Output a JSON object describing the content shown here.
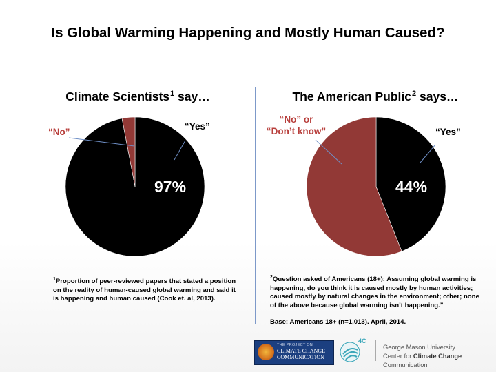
{
  "title": "Is Global Warming Happening and Mostly Human Caused?",
  "colors": {
    "yes": "#000000",
    "no": "#923936",
    "no_label": "#b83f3c",
    "divider": "#7d99c9"
  },
  "chart_data": [
    {
      "type": "pie",
      "title": "Climate Scientists",
      "title_sup": "1",
      "title_suffix": " say…",
      "labels": [
        "“Yes”",
        "“No”"
      ],
      "values": [
        97,
        3
      ],
      "data_label": "97%"
    },
    {
      "type": "pie",
      "title": "The American Public",
      "title_sup": "2",
      "title_suffix": " says…",
      "labels": [
        "“Yes”",
        "“No” or “Don’t know”"
      ],
      "label_lines": [
        "“No” or",
        "“Don’t know”"
      ],
      "values": [
        44,
        56
      ],
      "data_label": "44%"
    }
  ],
  "footnotes": {
    "fn1_sup": "1",
    "fn1": "Proportion of peer-reviewed papers that stated a position on the reality of human-caused global warming and said it is happening and human caused (Cook et. al, 2013).",
    "fn2_sup": "2",
    "fn2": "Question asked of Americans (18+): Assuming global warming is happening, do you think it is caused mostly by human activities; caused mostly by natural changes in the environment; other; none of the above because global warming isn’t happening.”",
    "base": "Base: Americans 18+ (n=1,013). April, 2014."
  },
  "logos": {
    "logo1_line1": "THE PROJECT ON",
    "logo1_line2": "CLIMATE CHANGE",
    "logo1_line3": "COMMUNICATION",
    "logo2_text": "4C",
    "gmu_line1": "George Mason University",
    "gmu_line2_pre": "Center for ",
    "gmu_line2_bold": "Climate Change",
    "gmu_line2_post": " Communication"
  }
}
